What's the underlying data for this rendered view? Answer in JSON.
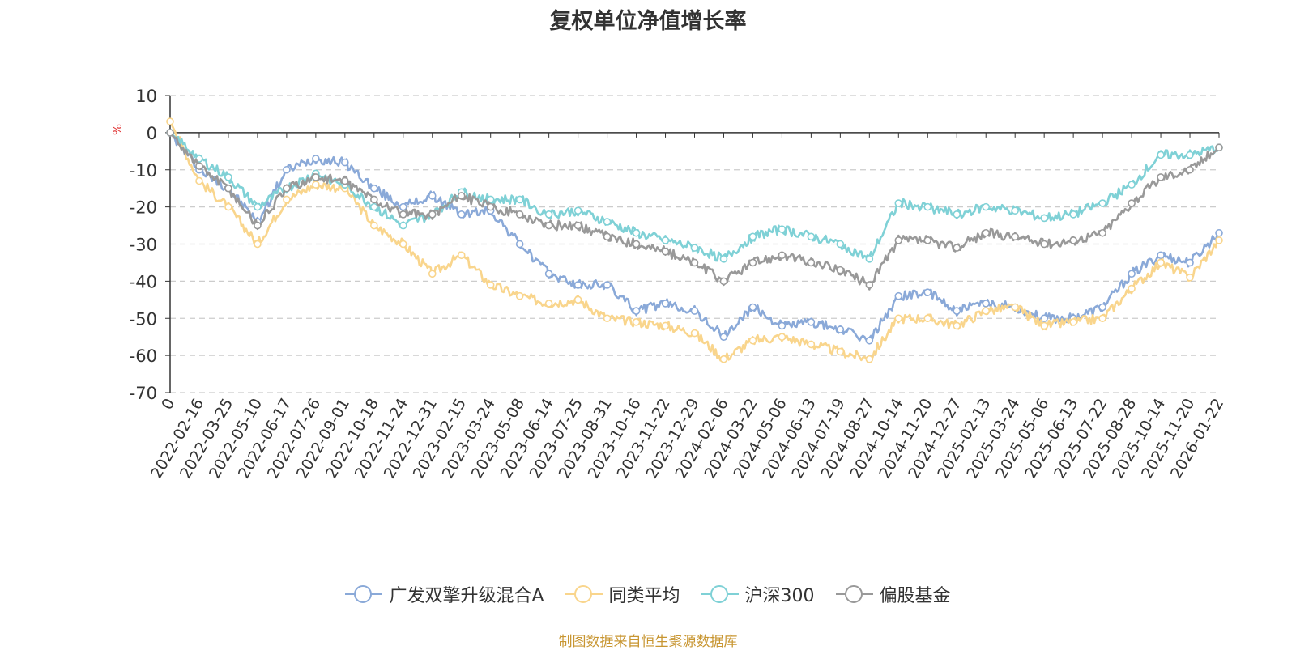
{
  "chart_data": {
    "type": "line",
    "title": "复权单位净值增长率",
    "ylabel": "%",
    "xlabel": "",
    "ylim": [
      -70,
      10
    ],
    "yticks": [
      10,
      0,
      -10,
      -20,
      -30,
      -40,
      -50,
      -60,
      -70
    ],
    "grid": true,
    "legend_position": "bottom",
    "x_tick_labels": [
      "0",
      "2022-02-16",
      "2022-03-25",
      "2022-05-10",
      "2022-06-17",
      "2022-07-26",
      "2022-09-01",
      "2022-10-18",
      "2022-11-24",
      "2022-12-31",
      "2023-02-15",
      "2023-03-24",
      "2023-05-08",
      "2023-06-14",
      "2023-07-25",
      "2023-08-31",
      "2023-10-16",
      "2023-11-22",
      "2023-12-29",
      "2024-02-06",
      "2024-03-22",
      "2024-05-06",
      "2024-06-13",
      "2024-07-19",
      "2024-08-27",
      "2024-10-14",
      "2024-11-20",
      "2024-12-27",
      "2025-02-13",
      "2025-03-24",
      "2025-05-06",
      "2025-06-13",
      "2025-07-22",
      "2025-08-28",
      "2025-10-14",
      "2025-11-20",
      "2026-01-22"
    ],
    "series": [
      {
        "name": "广发双擎升级混合A",
        "color": "#8aa9d8",
        "values": [
          0,
          -10,
          -15,
          -24,
          -10,
          -7,
          -8,
          -15,
          -20,
          -17,
          -22,
          -21,
          -30,
          -38,
          -41,
          -41,
          -48,
          -46,
          -48,
          -55,
          -47,
          -52,
          -51,
          -53,
          -56,
          -44,
          -43,
          -48,
          -46,
          -47,
          -50,
          -50,
          -47,
          -38,
          -33,
          -35,
          -27
        ]
      },
      {
        "name": "同类平均",
        "color": "#f9d58c",
        "values": [
          3,
          -13,
          -20,
          -30,
          -18,
          -14,
          -15,
          -25,
          -30,
          -38,
          -33,
          -41,
          -44,
          -46,
          -45,
          -50,
          -51,
          -52,
          -54,
          -61,
          -56,
          -55,
          -57,
          -59,
          -61,
          -50,
          -50,
          -52,
          -48,
          -47,
          -52,
          -51,
          -50,
          -42,
          -35,
          -39,
          -29
        ]
      },
      {
        "name": "沪深300",
        "color": "#7fd1d6",
        "values": [
          0,
          -7,
          -12,
          -20,
          -15,
          -11,
          -14,
          -20,
          -25,
          -22,
          -16,
          -18,
          -18,
          -22,
          -21,
          -24,
          -27,
          -29,
          -31,
          -34,
          -28,
          -26,
          -28,
          -30,
          -34,
          -19,
          -20,
          -22,
          -20,
          -21,
          -23,
          -22,
          -19,
          -14,
          -6,
          -6,
          -4
        ]
      },
      {
        "name": "偏股基金",
        "color": "#999999",
        "values": [
          0,
          -9,
          -15,
          -25,
          -15,
          -12,
          -13,
          -18,
          -22,
          -22,
          -17,
          -20,
          -22,
          -25,
          -25,
          -28,
          -30,
          -32,
          -35,
          -40,
          -35,
          -33,
          -35,
          -37,
          -41,
          -29,
          -29,
          -31,
          -27,
          -28,
          -30,
          -29,
          -27,
          -19,
          -12,
          -10,
          -4
        ]
      }
    ]
  },
  "source_text": "制图数据来自恒生聚源数据库"
}
